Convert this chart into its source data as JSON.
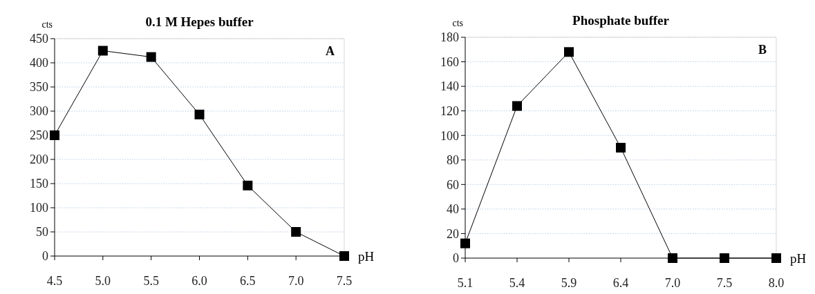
{
  "chart_data": [
    {
      "type": "line",
      "title": "0.1 M Hepes buffer",
      "xlabel": "pH",
      "ylabel": "cts",
      "annotations": [
        "A"
      ],
      "categories": [
        "4.5",
        "5.0",
        "5.5",
        "6.0",
        "6.5",
        "7.0",
        "7.5"
      ],
      "series": [
        {
          "color": "#000000",
          "values": [
            250,
            425,
            412,
            293,
            146,
            50,
            0
          ]
        }
      ],
      "ylim": [
        0,
        450
      ],
      "yticks": [
        0,
        50,
        100,
        150,
        200,
        250,
        300,
        350,
        400,
        450
      ],
      "grid": "y",
      "marker": "square"
    },
    {
      "type": "line",
      "title": "Phosphate buffer",
      "xlabel": "pH",
      "ylabel": "cts",
      "annotations": [
        "B"
      ],
      "categories": [
        "5.1",
        "5.4",
        "5.9",
        "6.4",
        "7.0",
        "7.5",
        "8.0"
      ],
      "series": [
        {
          "color": "#000000",
          "values": [
            12,
            124,
            168,
            90,
            0,
            0,
            0
          ]
        }
      ],
      "ylim": [
        0,
        180
      ],
      "yticks": [
        0,
        20,
        40,
        60,
        80,
        100,
        120,
        140,
        160,
        180
      ],
      "grid": "y",
      "marker": "square"
    }
  ]
}
